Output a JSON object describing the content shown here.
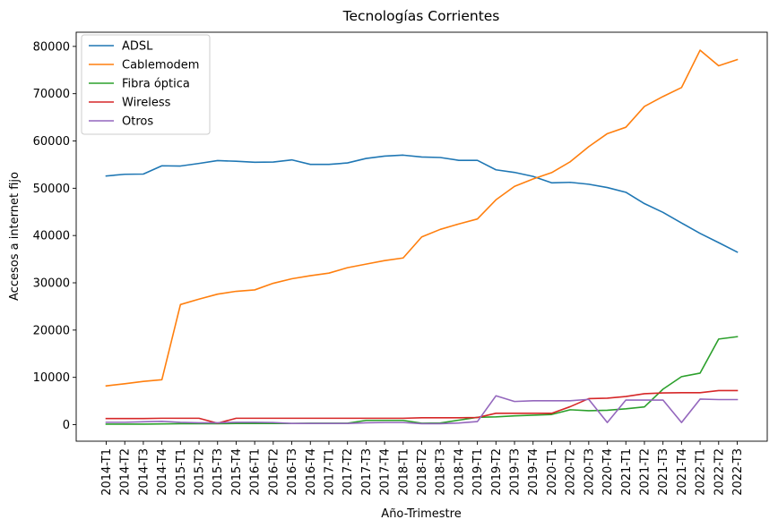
{
  "chart_data": {
    "type": "line",
    "title": "Tecnologías Corrientes",
    "xlabel": "Año-Trimestre",
    "ylabel": "Accesos a internet fijo",
    "ylim": [
      -3500,
      83000
    ],
    "yticks": [
      0,
      10000,
      20000,
      30000,
      40000,
      50000,
      60000,
      70000,
      80000
    ],
    "grid": false,
    "legend_position": "upper-left",
    "categories": [
      "2014-T1",
      "2014-T2",
      "2014-T3",
      "2014-T4",
      "2015-T1",
      "2015-T2",
      "2015-T3",
      "2015-T4",
      "2016-T1",
      "2016-T2",
      "2016-T3",
      "2016-T4",
      "2017-T1",
      "2017-T2",
      "2017-T3",
      "2017-T4",
      "2018-T1",
      "2018-T2",
      "2018-T3",
      "2018-T4",
      "2019-T1",
      "2019-T2",
      "2019-T3",
      "2019-T4",
      "2020-T1",
      "2020-T2",
      "2020-T3",
      "2020-T4",
      "2021-T1",
      "2021-T2",
      "2021-T3",
      "2021-T4",
      "2022-T1",
      "2022-T2",
      "2022-T3"
    ],
    "series": [
      {
        "name": "ADSL",
        "color": "#1f77b4",
        "values": [
          52600,
          52950,
          53000,
          54750,
          54700,
          55250,
          55850,
          55700,
          55500,
          55550,
          56000,
          55050,
          55050,
          55350,
          56300,
          56800,
          57000,
          56600,
          56500,
          55900,
          55900,
          53900,
          53350,
          52500,
          51150,
          51250,
          50850,
          50150,
          49150,
          46750,
          44900,
          42650,
          40450,
          38500,
          36500
        ]
      },
      {
        "name": "Cablemodem",
        "color": "#ff7f0e",
        "values": [
          8200,
          8650,
          9150,
          9500,
          25400,
          26550,
          27600,
          28200,
          28500,
          29900,
          30850,
          31500,
          32050,
          33200,
          33950,
          34700,
          35250,
          39700,
          41300,
          42450,
          43500,
          47550,
          50400,
          51950,
          53300,
          55600,
          58800,
          61550,
          62900,
          67300,
          69400,
          71300,
          79200,
          75900,
          77200
        ]
      },
      {
        "name": "Fibra óptica",
        "color": "#2ca02c",
        "values": [
          100,
          100,
          100,
          150,
          200,
          200,
          200,
          250,
          250,
          250,
          250,
          300,
          300,
          300,
          900,
          900,
          900,
          300,
          350,
          950,
          1550,
          1650,
          1850,
          2000,
          2150,
          3150,
          2950,
          3050,
          3350,
          3750,
          7500,
          10150,
          10900,
          18100,
          18600
        ]
      },
      {
        "name": "Wireless",
        "color": "#d62728",
        "values": [
          1300,
          1300,
          1300,
          1350,
          1350,
          1350,
          300,
          1350,
          1350,
          1350,
          1350,
          1350,
          1350,
          1350,
          1350,
          1350,
          1350,
          1450,
          1450,
          1450,
          1500,
          2400,
          2400,
          2400,
          2400,
          3800,
          5500,
          5600,
          5950,
          6550,
          6700,
          6750,
          6750,
          7200,
          7200
        ]
      },
      {
        "name": "Otros",
        "color": "#9467bd",
        "values": [
          500,
          500,
          600,
          700,
          500,
          400,
          400,
          500,
          500,
          450,
          250,
          250,
          250,
          250,
          400,
          450,
          450,
          200,
          200,
          350,
          650,
          6100,
          4900,
          5050,
          5050,
          5050,
          5350,
          450,
          5200,
          5200,
          5200,
          450,
          5400,
          5300,
          5300
        ]
      }
    ]
  }
}
